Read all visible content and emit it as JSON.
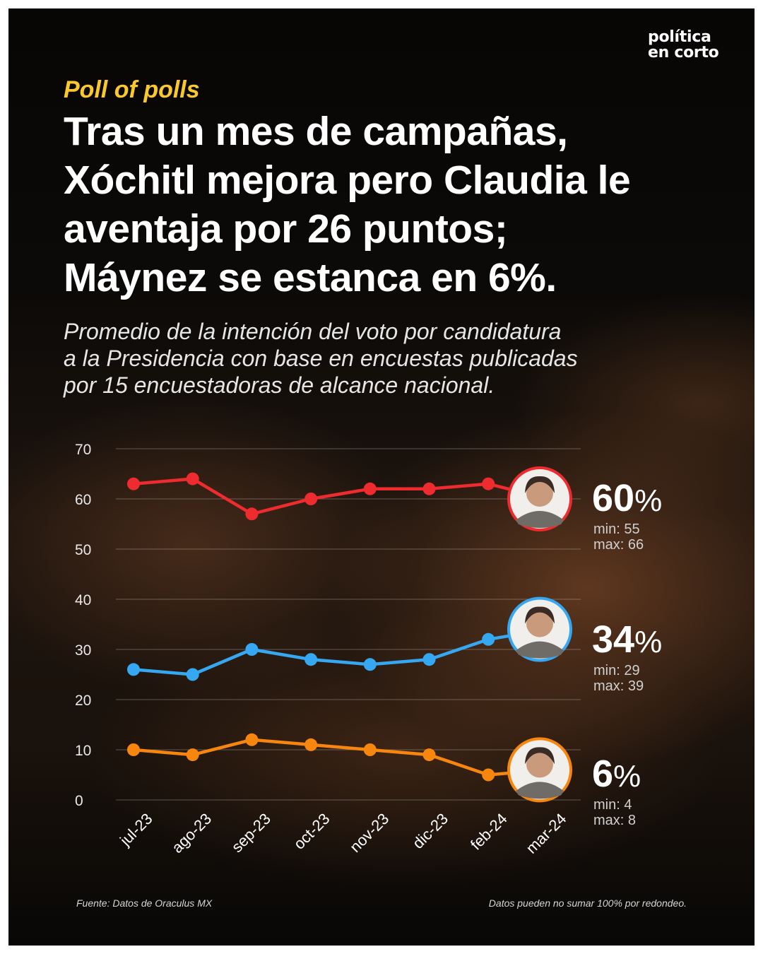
{
  "brand": {
    "line1": "política",
    "line2": "en corto"
  },
  "kicker": "Poll of polls",
  "title_lines": [
    "Tras un mes de campañas,",
    "Xóchitl mejora pero Claudia le",
    "aventaja por 26 puntos;",
    "Máynez se estanca en 6%."
  ],
  "subtitle_lines": [
    "Promedio de la intención del voto por candidatura",
    "a la Presidencia con base en encuestas publicadas",
    "por 15 encuestadoras de alcance nacional."
  ],
  "candidates": [
    {
      "value": "60",
      "pct": "%",
      "min": "min: 55",
      "max": "max: 66",
      "color": "#ee2b2f",
      "avatar_icon": "candidate-portrait-icon"
    },
    {
      "value": "34",
      "pct": "%",
      "min": "min: 29",
      "max": "max: 39",
      "color": "#36a8f2",
      "avatar_icon": "candidate-portrait-icon"
    },
    {
      "value": "6",
      "pct": "%",
      "min": "min: 4",
      "max": "max: 8",
      "color": "#f7860f",
      "avatar_icon": "candidate-portrait-icon"
    }
  ],
  "chart_data": {
    "type": "line",
    "categories": [
      "jul-23",
      "ago-23",
      "sep-23",
      "oct-23",
      "nov-23",
      "dic-23",
      "feb-24",
      "mar-24"
    ],
    "ylim": [
      0,
      70
    ],
    "yticks": [
      0,
      10,
      20,
      30,
      40,
      50,
      60,
      70
    ],
    "grid": true,
    "series": [
      {
        "color": "#ee2b2f",
        "values": [
          63,
          64,
          57,
          60,
          62,
          62,
          63,
          60
        ]
      },
      {
        "color": "#36a8f2",
        "values": [
          26,
          25,
          30,
          28,
          27,
          28,
          32,
          34
        ]
      },
      {
        "color": "#f7860f",
        "values": [
          10,
          9,
          12,
          11,
          10,
          9,
          5,
          6
        ]
      }
    ]
  },
  "footer": {
    "source": "Fuente: Datos de Oraculus MX",
    "note": "Datos pueden no sumar 100% por redondeo."
  }
}
